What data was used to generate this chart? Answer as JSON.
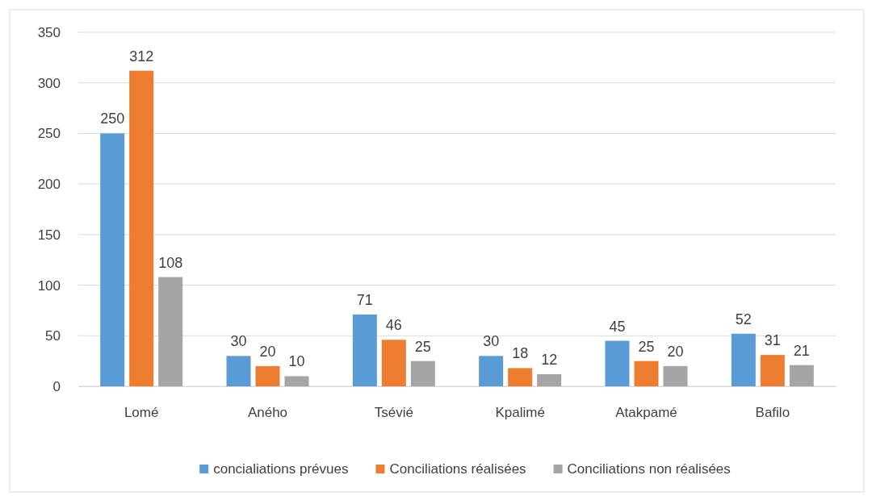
{
  "chart_data": {
    "type": "bar",
    "categories": [
      "Lomé",
      "Aného",
      "Tsévié",
      "Kpalimé",
      "Atakpamé",
      "Bafilo"
    ],
    "series": [
      {
        "name": "concialiations prévues",
        "color": "#5b9bd5",
        "values": [
          250,
          30,
          71,
          30,
          45,
          52
        ]
      },
      {
        "name": "Conciliations réalisées",
        "color": "#ed7d31",
        "values": [
          312,
          20,
          46,
          18,
          25,
          31
        ]
      },
      {
        "name": "Conciliations non réalisées",
        "color": "#a5a5a5",
        "values": [
          108,
          10,
          25,
          12,
          20,
          21
        ]
      }
    ],
    "ylim": [
      0,
      350
    ],
    "yticks": [
      0,
      50,
      100,
      150,
      200,
      250,
      300,
      350
    ],
    "grid": "y",
    "legend": "bottom",
    "data_labels": true
  }
}
